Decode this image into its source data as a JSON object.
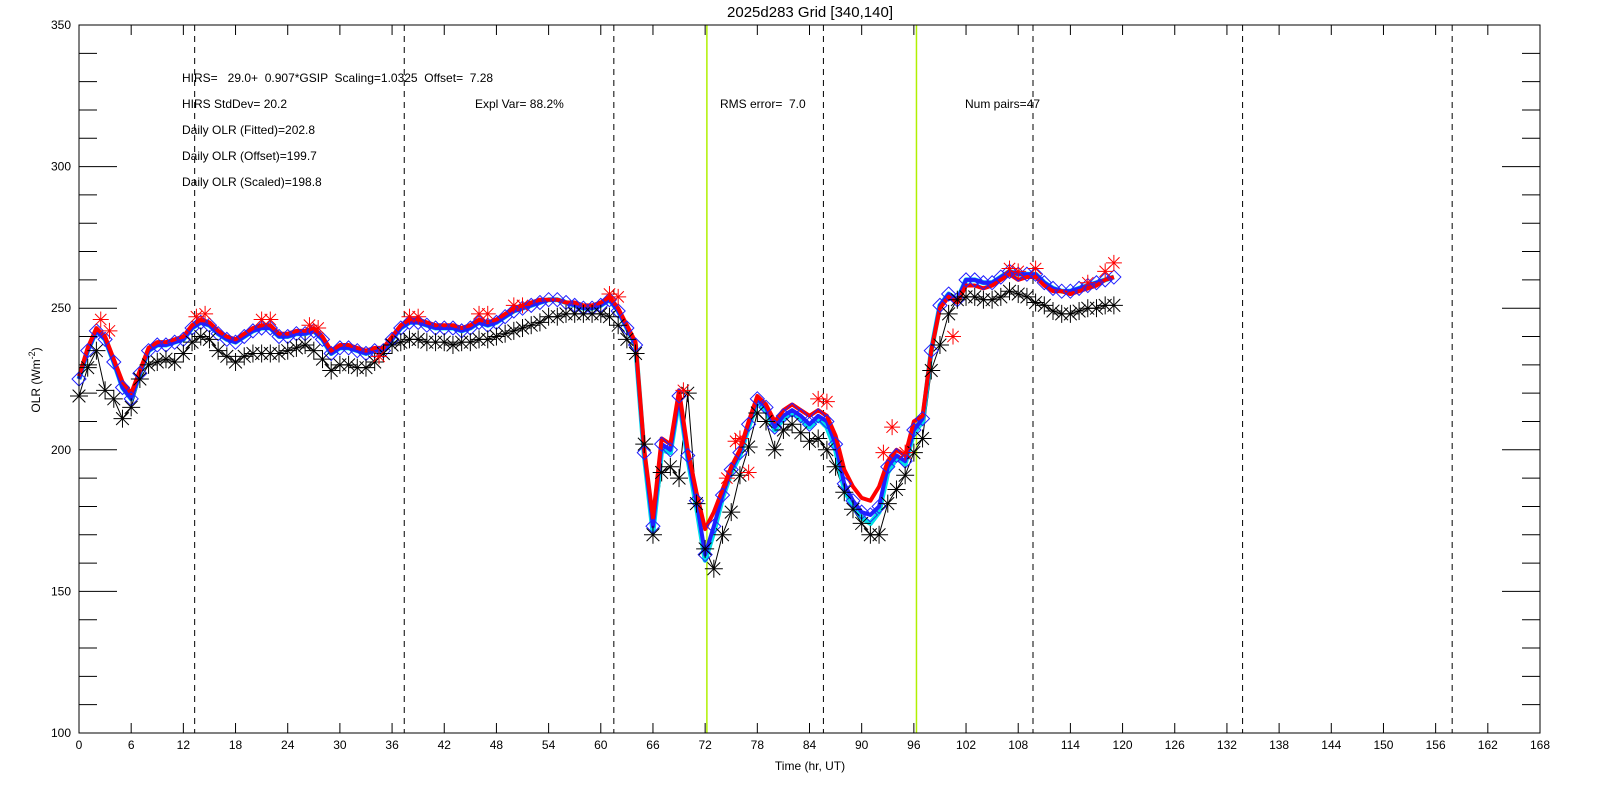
{
  "chart_data": {
    "type": "line",
    "title": "2025d283 Grid [340,140]",
    "xlabel": "Time (hr, UT)",
    "ylabel": "OLR (Wm",
    "ylabel_sup": "-2",
    "ylabel_end": ")",
    "xlim": [
      0,
      168
    ],
    "ylim": [
      100,
      350
    ],
    "xticks": [
      0,
      6,
      12,
      18,
      24,
      30,
      36,
      42,
      48,
      54,
      60,
      66,
      72,
      78,
      84,
      90,
      96,
      102,
      108,
      114,
      120,
      126,
      132,
      138,
      144,
      150,
      156,
      162,
      168
    ],
    "yticks": [
      100,
      150,
      200,
      250,
      300,
      350
    ],
    "yminor_step": 10,
    "day_lines": [
      13.3,
      37.4,
      61.5,
      85.6,
      109.7,
      133.8,
      157.9
    ],
    "window_lines": [
      72.2,
      96.3
    ],
    "annotations": {
      "line1": "HIRS=   29.0+  0.907*GSIP  Scaling=1.0325  Offset=  7.28",
      "stddev": "HIRS StdDev= 20.2",
      "explvar": "Expl Var= 88.2%",
      "rms": "RMS error=  7.0",
      "pairs": "Num pairs=47",
      "fitted": "Daily OLR (Fitted)=202.8",
      "offset": "Daily OLR (Offset)=199.7",
      "scaled": "Daily OLR (Scaled)=198.8"
    },
    "colors": {
      "hirs": "#000000",
      "fitted": "#ff0000",
      "scaled": "#2020ff",
      "offset": "#00e0e8",
      "gsip_marks": "#ff0000",
      "window": "#b0f000"
    },
    "x": [
      0,
      1,
      2,
      3,
      4,
      5,
      6,
      7,
      8,
      9,
      10,
      11,
      12,
      13,
      14,
      15,
      16,
      17,
      18,
      19,
      20,
      21,
      22,
      23,
      24,
      25,
      26,
      27,
      28,
      29,
      30,
      31,
      32,
      33,
      34,
      35,
      36,
      37,
      38,
      39,
      40,
      41,
      42,
      43,
      44,
      45,
      46,
      47,
      48,
      49,
      50,
      51,
      52,
      53,
      54,
      55,
      56,
      57,
      58,
      59,
      60,
      61,
      62,
      63,
      64,
      65,
      66,
      67,
      68,
      69,
      70,
      71,
      72,
      73,
      74,
      75,
      76,
      77,
      78,
      79,
      80,
      81,
      82,
      83,
      84,
      85,
      86,
      87,
      88,
      89,
      90,
      91,
      92,
      93,
      94,
      95,
      96,
      97,
      98,
      99,
      100,
      101,
      102,
      103,
      104,
      105,
      106,
      107,
      108,
      109,
      110,
      111,
      112,
      113,
      114,
      115,
      116,
      117,
      118,
      119
    ],
    "series": [
      {
        "name": "HIRS",
        "values": [
          219,
          229,
          235,
          221,
          218,
          211,
          215,
          225,
          230,
          231,
          232,
          231,
          234,
          238,
          240,
          239,
          235,
          233,
          231,
          233,
          234,
          234,
          234,
          234,
          235,
          236,
          237,
          235,
          232,
          228,
          230,
          230,
          229,
          229,
          231,
          234,
          237,
          238,
          239,
          239,
          238,
          238,
          238,
          237,
          238,
          238,
          239,
          239,
          240,
          241,
          242,
          243,
          244,
          245,
          247,
          247,
          248,
          248,
          248,
          248,
          248,
          247,
          244,
          239,
          234,
          202,
          170,
          192,
          194,
          190,
          220,
          181,
          165,
          158,
          170,
          178,
          191,
          201,
          213,
          210,
          200,
          207,
          209,
          206,
          203,
          204,
          200,
          194,
          185,
          179,
          174,
          170,
          170,
          181,
          186,
          191,
          199,
          204,
          228,
          237,
          248,
          253,
          254,
          254,
          253,
          253,
          254,
          256,
          255,
          254,
          252,
          251,
          249,
          248,
          248,
          249,
          250,
          250,
          251,
          251
        ]
      },
      {
        "name": "Offset",
        "values": [
          225,
          235,
          242,
          239,
          231,
          222,
          218,
          227,
          235,
          237,
          237,
          238,
          239,
          243,
          245,
          244,
          241,
          239,
          238,
          240,
          242,
          243,
          243,
          240,
          240,
          241,
          241,
          242,
          239,
          234,
          236,
          236,
          235,
          234,
          235,
          235,
          239,
          243,
          245,
          245,
          244,
          243,
          243,
          243,
          242,
          243,
          245,
          244,
          245,
          247,
          249,
          250,
          251,
          252,
          253,
          253,
          252,
          251,
          250,
          250,
          251,
          253,
          249,
          243,
          237,
          198,
          171,
          200,
          199,
          218,
          197,
          180,
          161,
          171,
          183,
          192,
          198,
          208,
          217,
          214,
          207,
          211,
          213,
          211,
          208,
          211,
          208,
          200,
          186,
          180,
          176,
          174,
          178,
          192,
          197,
          195,
          206,
          210,
          235,
          251,
          255,
          253,
          260,
          260,
          259,
          259,
          261,
          263,
          262,
          262,
          262,
          259,
          257,
          256,
          256,
          257,
          258,
          259,
          260,
          261
        ]
      },
      {
        "name": "Scaled",
        "values": [
          225,
          235,
          242,
          239,
          231,
          222,
          218,
          227,
          235,
          237,
          237,
          238,
          239,
          243,
          245,
          244,
          241,
          239,
          238,
          240,
          242,
          243,
          243,
          240,
          240,
          241,
          241,
          242,
          239,
          234,
          236,
          236,
          235,
          234,
          235,
          235,
          239,
          243,
          245,
          245,
          244,
          243,
          243,
          243,
          242,
          243,
          245,
          244,
          245,
          247,
          249,
          250,
          251,
          252,
          253,
          253,
          252,
          251,
          250,
          250,
          251,
          253,
          249,
          243,
          237,
          199,
          173,
          202,
          200,
          219,
          198,
          182,
          163,
          173,
          184,
          193,
          199,
          209,
          218,
          215,
          208,
          212,
          214,
          212,
          209,
          212,
          210,
          202,
          188,
          182,
          178,
          177,
          180,
          194,
          198,
          196,
          207,
          211,
          235,
          251,
          255,
          253,
          260,
          260,
          259,
          259,
          261,
          263,
          262,
          262,
          262,
          259,
          257,
          256,
          256,
          257,
          258,
          259,
          260,
          261
        ]
      },
      {
        "name": "Fitted",
        "values": [
          226,
          236,
          243,
          240,
          232,
          224,
          220,
          228,
          236,
          238,
          238,
          239,
          240,
          244,
          246,
          245,
          242,
          240,
          239,
          241,
          243,
          244,
          244,
          241,
          241,
          242,
          242,
          243,
          240,
          235,
          237,
          237,
          236,
          235,
          236,
          236,
          240,
          244,
          246,
          246,
          245,
          244,
          244,
          244,
          243,
          244,
          246,
          245,
          246,
          248,
          250,
          251,
          252,
          253,
          253,
          253,
          252,
          252,
          251,
          251,
          252,
          254,
          250,
          244,
          238,
          200,
          176,
          204,
          202,
          221,
          200,
          185,
          172,
          178,
          186,
          194,
          200,
          210,
          219,
          216,
          210,
          214,
          216,
          214,
          212,
          214,
          212,
          205,
          193,
          187,
          183,
          182,
          187,
          196,
          200,
          198,
          210,
          212,
          235,
          250,
          254,
          252,
          258,
          258,
          257,
          258,
          260,
          262,
          260,
          261,
          261,
          258,
          256,
          256,
          255,
          256,
          257,
          258,
          260,
          261
        ]
      }
    ],
    "gsip_points": [
      [
        2.5,
        246
      ],
      [
        3.5,
        242
      ],
      [
        13.5,
        247
      ],
      [
        14.5,
        248
      ],
      [
        21,
        246
      ],
      [
        22,
        246
      ],
      [
        26.5,
        244
      ],
      [
        27.5,
        243
      ],
      [
        34.5,
        233
      ],
      [
        38,
        247
      ],
      [
        39,
        247
      ],
      [
        46,
        248
      ],
      [
        47,
        248
      ],
      [
        50,
        251
      ],
      [
        51,
        251
      ],
      [
        61,
        255
      ],
      [
        62,
        254
      ],
      [
        69.5,
        221
      ],
      [
        74.5,
        190
      ],
      [
        75.5,
        203
      ],
      [
        76,
        204
      ],
      [
        77,
        192
      ],
      [
        85,
        218
      ],
      [
        86,
        217
      ],
      [
        92.5,
        199
      ],
      [
        93.5,
        208
      ],
      [
        95,
        199
      ],
      [
        100.5,
        240
      ],
      [
        107,
        264
      ],
      [
        108,
        263
      ],
      [
        110,
        264
      ],
      [
        116,
        259
      ],
      [
        118,
        263
      ],
      [
        119,
        266
      ]
    ]
  }
}
